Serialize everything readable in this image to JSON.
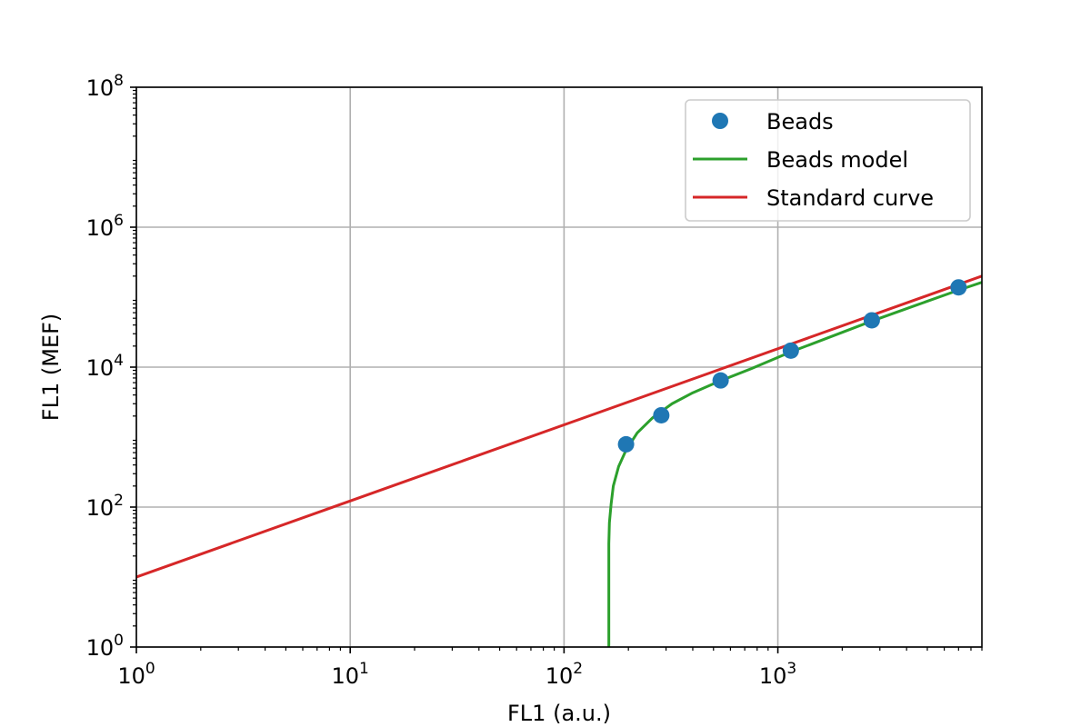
{
  "chart_data": {
    "type": "line",
    "title": "",
    "xlabel": "FL1 (a.u.)",
    "ylabel": "FL1 (MEF)",
    "xscale": "log",
    "yscale": "log",
    "xlim": [
      1,
      9000
    ],
    "ylim": [
      1,
      100000000
    ],
    "grid": true,
    "legend_position": "top-right",
    "x_ticks": [
      {
        "base": "10",
        "exp": "0",
        "value": 1
      },
      {
        "base": "10",
        "exp": "1",
        "value": 10
      },
      {
        "base": "10",
        "exp": "2",
        "value": 100
      },
      {
        "base": "10",
        "exp": "3",
        "value": 1000
      }
    ],
    "y_ticks": [
      {
        "base": "10",
        "exp": "0",
        "value": 1
      },
      {
        "base": "10",
        "exp": "2",
        "value": 100
      },
      {
        "base": "10",
        "exp": "4",
        "value": 10000
      },
      {
        "base": "10",
        "exp": "6",
        "value": 1000000
      },
      {
        "base": "10",
        "exp": "8",
        "value": 100000000
      }
    ],
    "series": [
      {
        "name": "Beads",
        "kind": "scatter",
        "color": "#1f77b4",
        "x": [
          195,
          285,
          540,
          1150,
          2750,
          7000
        ],
        "y": [
          790,
          2050,
          6450,
          17200,
          46700,
          138000
        ]
      },
      {
        "name": "Beads model",
        "kind": "line",
        "color": "#2ca02c",
        "x": [
          162,
          162,
          163,
          166,
          170,
          180,
          195,
          220,
          260,
          320,
          400,
          540,
          750,
          1150,
          1700,
          2750,
          4500,
          7000,
          9000
        ],
        "y": [
          1,
          30,
          60,
          110,
          200,
          380,
          650,
          1150,
          1900,
          3000,
          4300,
          6400,
          9500,
          16500,
          26000,
          45500,
          78000,
          126000,
          163000
        ]
      },
      {
        "name": "Standard curve",
        "kind": "line",
        "color": "#d62728",
        "x": [
          1,
          9000
        ],
        "y": [
          10,
          200000
        ]
      }
    ]
  }
}
